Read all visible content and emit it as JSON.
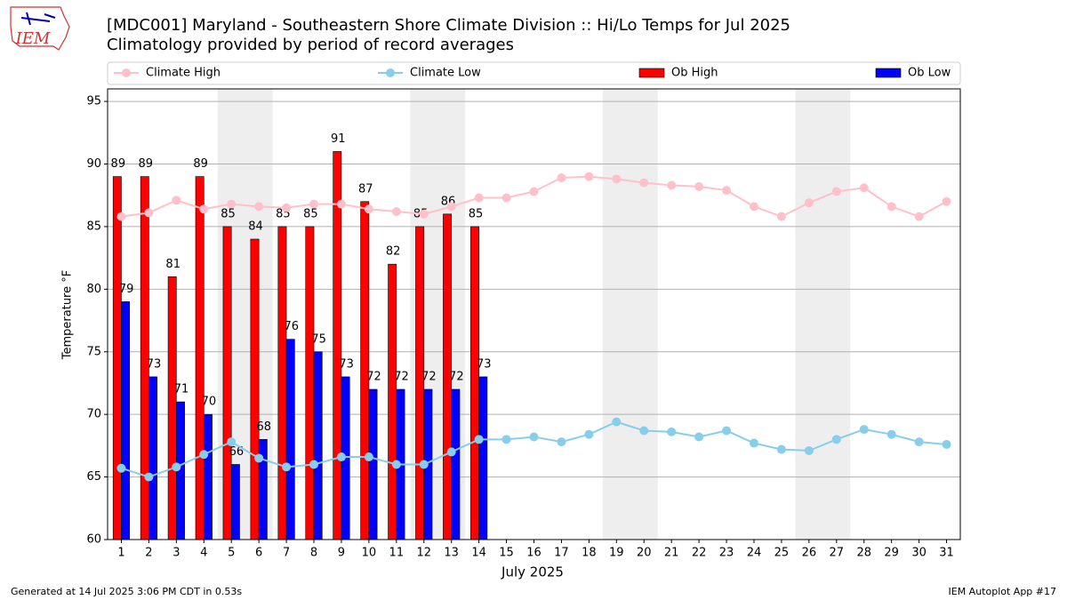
{
  "logo_text": "IEM",
  "footer": {
    "left": "Generated at 14 Jul 2025 3:06 PM CDT in 0.53s",
    "right": "IEM Autoplot App #17"
  },
  "chart_data": {
    "type": "bar_line",
    "title": "[MDC001] Maryland - Southeastern Shore Climate Division :: Hi/Lo Temps for Jul 2025",
    "subtitle": "Climatology provided by period of record averages",
    "xlabel": "July 2025",
    "ylabel": "Temperature °F",
    "x": [
      1,
      2,
      3,
      4,
      5,
      6,
      7,
      8,
      9,
      10,
      11,
      12,
      13,
      14,
      15,
      16,
      17,
      18,
      19,
      20,
      21,
      22,
      23,
      24,
      25,
      26,
      27,
      28,
      29,
      30,
      31
    ],
    "xlim": [
      0.5,
      31.5
    ],
    "xticks": [
      1,
      2,
      3,
      4,
      5,
      6,
      7,
      8,
      9,
      10,
      11,
      12,
      13,
      14,
      15,
      16,
      17,
      18,
      19,
      20,
      21,
      22,
      23,
      24,
      25,
      26,
      27,
      28,
      29,
      30,
      31
    ],
    "ylim": [
      60,
      96
    ],
    "yticks": [
      60,
      65,
      70,
      75,
      80,
      85,
      90,
      95
    ],
    "grid": true,
    "legend": "top",
    "shaded_spans": [
      [
        4.5,
        6.5
      ],
      [
        11.5,
        13.5
      ],
      [
        18.5,
        20.5
      ],
      [
        25.5,
        27.5
      ]
    ],
    "shade_color": "#eeeeee",
    "series": [
      {
        "name": "Climate High",
        "kind": "line",
        "color": "#ffc0cb",
        "values": [
          85.8,
          86.1,
          87.1,
          86.4,
          86.8,
          86.6,
          86.5,
          86.8,
          86.8,
          86.4,
          86.2,
          86.0,
          86.6,
          87.3,
          87.3,
          87.8,
          88.9,
          89.0,
          88.8,
          88.5,
          88.3,
          88.2,
          87.9,
          86.6,
          85.8,
          86.9,
          87.8,
          88.1,
          86.6,
          85.8,
          87.0
        ]
      },
      {
        "name": "Climate Low",
        "kind": "line",
        "color": "#87ceeb",
        "values": [
          65.7,
          65.0,
          65.8,
          66.8,
          67.8,
          66.5,
          65.8,
          66.0,
          66.6,
          66.6,
          66.0,
          66.0,
          67.0,
          68.0,
          68.0,
          68.2,
          67.8,
          68.4,
          69.4,
          68.7,
          68.6,
          68.2,
          68.7,
          67.7,
          67.2,
          67.1,
          68.0,
          68.8,
          68.4,
          67.8,
          67.6
        ]
      },
      {
        "name": "Ob High",
        "kind": "bar",
        "color": "#ff0000",
        "values": [
          89,
          89,
          81,
          89,
          85,
          84,
          85,
          85,
          91,
          87,
          82,
          85,
          86,
          85,
          null,
          null,
          null,
          null,
          null,
          null,
          null,
          null,
          null,
          null,
          null,
          null,
          null,
          null,
          null,
          null,
          null
        ]
      },
      {
        "name": "Ob Low",
        "kind": "bar",
        "color": "#0000ff",
        "values": [
          79,
          73,
          71,
          70,
          66,
          68,
          76,
          75,
          73,
          72,
          72,
          72,
          72,
          73,
          null,
          null,
          null,
          null,
          null,
          null,
          null,
          null,
          null,
          null,
          null,
          null,
          null,
          null,
          null,
          null,
          null
        ]
      }
    ]
  }
}
